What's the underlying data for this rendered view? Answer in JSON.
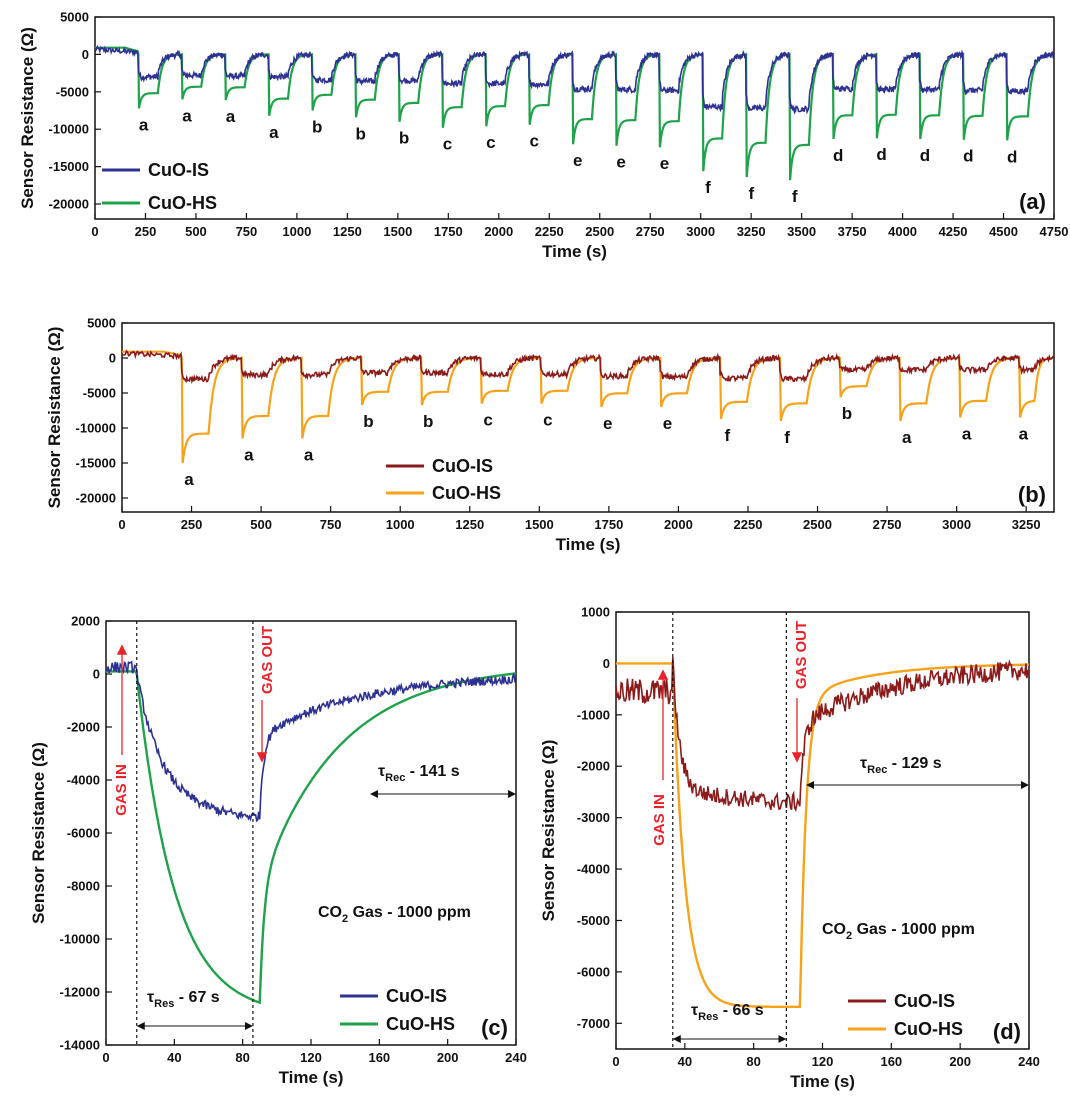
{
  "chart_data": [
    {
      "id": "a",
      "type": "line",
      "panel_label": "(a)",
      "xlabel": "Time (s)",
      "ylabel": "Sensor Resistance (Ω)",
      "xlim": [
        0,
        4750
      ],
      "ylim": [
        -22000,
        5000
      ],
      "xticks": [
        0,
        250,
        500,
        750,
        1000,
        1250,
        1500,
        1750,
        2000,
        2250,
        2500,
        2750,
        3000,
        3250,
        3500,
        3750,
        4000,
        4250,
        4500,
        4750
      ],
      "yticks": [
        5000,
        0,
        -5000,
        -10000,
        -15000,
        -20000
      ],
      "legend_position": "bottom-left",
      "series": [
        {
          "name": "CuO-IS",
          "color": "#2e3192"
        },
        {
          "name": "CuO-HS",
          "color": "#1fa34a"
        }
      ],
      "cycles": [
        {
          "start": 215,
          "end": 430,
          "label": "a",
          "is_min": -3000,
          "hs_min": -7200
        },
        {
          "start": 430,
          "end": 645,
          "label": "a",
          "is_min": -2800,
          "hs_min": -6000
        },
        {
          "start": 645,
          "end": 860,
          "label": "a",
          "is_min": -2900,
          "hs_min": -6100
        },
        {
          "start": 860,
          "end": 1075,
          "label": "a",
          "is_min": -3000,
          "hs_min": -8200
        },
        {
          "start": 1075,
          "end": 1290,
          "label": "b",
          "is_min": -3400,
          "hs_min": -7500
        },
        {
          "start": 1290,
          "end": 1505,
          "label": "b",
          "is_min": -3600,
          "hs_min": -8400
        },
        {
          "start": 1505,
          "end": 1720,
          "label": "b",
          "is_min": -3500,
          "hs_min": -9000
        },
        {
          "start": 1720,
          "end": 1935,
          "label": "c",
          "is_min": -3900,
          "hs_min": -9800
        },
        {
          "start": 1935,
          "end": 2150,
          "label": "c",
          "is_min": -3900,
          "hs_min": -9600
        },
        {
          "start": 2150,
          "end": 2365,
          "label": "c",
          "is_min": -4000,
          "hs_min": -9400
        },
        {
          "start": 2365,
          "end": 2580,
          "label": "e",
          "is_min": -4600,
          "hs_min": -12000
        },
        {
          "start": 2580,
          "end": 2795,
          "label": "e",
          "is_min": -4700,
          "hs_min": -12200
        },
        {
          "start": 2795,
          "end": 3010,
          "label": "e",
          "is_min": -4800,
          "hs_min": -12400
        },
        {
          "start": 3010,
          "end": 3225,
          "label": "f",
          "is_min": -7000,
          "hs_min": -15600
        },
        {
          "start": 3225,
          "end": 3440,
          "label": "f",
          "is_min": -7200,
          "hs_min": -16400
        },
        {
          "start": 3440,
          "end": 3655,
          "label": "f",
          "is_min": -7300,
          "hs_min": -16800
        },
        {
          "start": 3655,
          "end": 3870,
          "label": "d",
          "is_min": -4600,
          "hs_min": -11300
        },
        {
          "start": 3870,
          "end": 4085,
          "label": "d",
          "is_min": -4700,
          "hs_min": -11200
        },
        {
          "start": 4085,
          "end": 4300,
          "label": "d",
          "is_min": -4700,
          "hs_min": -11300
        },
        {
          "start": 4300,
          "end": 4515,
          "label": "d",
          "is_min": -4800,
          "hs_min": -11400
        },
        {
          "start": 4515,
          "end": 4750,
          "label": "d",
          "is_min": -4900,
          "hs_min": -11500
        }
      ]
    },
    {
      "id": "b",
      "type": "line",
      "panel_label": "(b)",
      "xlabel": "Time (s)",
      "ylabel": "Sensor Resistance (Ω)",
      "xlim": [
        0,
        3350
      ],
      "ylim": [
        -22000,
        5000
      ],
      "xticks": [
        0,
        250,
        500,
        750,
        1000,
        1250,
        1500,
        1750,
        2000,
        2250,
        2500,
        2750,
        3000,
        3250
      ],
      "yticks": [
        5000,
        0,
        -5000,
        -10000,
        -15000,
        -20000
      ],
      "legend_position": "bottom-center",
      "series": [
        {
          "name": "CuO-IS",
          "color": "#8b1a1a"
        },
        {
          "name": "CuO-HS",
          "color": "#f7a21b"
        }
      ],
      "cycles": [
        {
          "start": 215,
          "end": 430,
          "label": "a",
          "is_min": -3000,
          "hs_min": -15000
        },
        {
          "start": 430,
          "end": 645,
          "label": "a",
          "is_min": -2400,
          "hs_min": -11500
        },
        {
          "start": 645,
          "end": 860,
          "label": "a",
          "is_min": -2400,
          "hs_min": -11500
        },
        {
          "start": 860,
          "end": 1075,
          "label": "b",
          "is_min": -2100,
          "hs_min": -6700
        },
        {
          "start": 1075,
          "end": 1290,
          "label": "b",
          "is_min": -2100,
          "hs_min": -6700
        },
        {
          "start": 1290,
          "end": 1505,
          "label": "c",
          "is_min": -2300,
          "hs_min": -6500
        },
        {
          "start": 1505,
          "end": 1720,
          "label": "c",
          "is_min": -2300,
          "hs_min": -6500
        },
        {
          "start": 1720,
          "end": 1935,
          "label": "e",
          "is_min": -2600,
          "hs_min": -7000
        },
        {
          "start": 1935,
          "end": 2150,
          "label": "e",
          "is_min": -2700,
          "hs_min": -7000
        },
        {
          "start": 2150,
          "end": 2365,
          "label": "f",
          "is_min": -2900,
          "hs_min": -8700
        },
        {
          "start": 2365,
          "end": 2580,
          "label": "f",
          "is_min": -3000,
          "hs_min": -9000
        },
        {
          "start": 2580,
          "end": 2795,
          "label": "b",
          "is_min": -1700,
          "hs_min": -5600
        },
        {
          "start": 2795,
          "end": 3010,
          "label": "a",
          "is_min": -1700,
          "hs_min": -9000
        },
        {
          "start": 3010,
          "end": 3225,
          "label": "a",
          "is_min": -1700,
          "hs_min": -8500
        },
        {
          "start": 3225,
          "end": 3350,
          "label": "a",
          "is_min": -1700,
          "hs_min": -8500
        }
      ]
    },
    {
      "id": "c",
      "type": "line",
      "panel_label": "(c)",
      "xlabel": "Time (s)",
      "ylabel": "Sensor Resistance (Ω)",
      "xlim": [
        0,
        240
      ],
      "ylim": [
        -14000,
        2000
      ],
      "xticks": [
        0,
        40,
        80,
        120,
        160,
        200,
        240
      ],
      "yticks": [
        2000,
        0,
        -2000,
        -4000,
        -6000,
        -8000,
        -10000,
        -12000,
        -14000
      ],
      "legend_position": "bottom-right",
      "gas_in_time": 18,
      "gas_out_time": 86,
      "series": [
        {
          "name": "CuO-IS",
          "color": "#2e3192",
          "min": -5400
        },
        {
          "name": "CuO-HS",
          "color": "#1fa34a",
          "min": -12400
        }
      ],
      "annotations": {
        "gas_in": "GAS IN",
        "gas_out": "GAS OUT",
        "tau_res": "67 s",
        "tau_rec": "141 s",
        "gas_text": "Gas - 1000 ppm"
      }
    },
    {
      "id": "d",
      "type": "line",
      "panel_label": "(d)",
      "xlabel": "Time (s)",
      "ylabel": "Sensor Resistance (Ω)",
      "xlim": [
        0,
        240
      ],
      "ylim": [
        -7500,
        1000
      ],
      "xticks": [
        0,
        40,
        80,
        120,
        160,
        200,
        240
      ],
      "yticks": [
        1000,
        0,
        -1000,
        -2000,
        -3000,
        -4000,
        -5000,
        -6000,
        -7000
      ],
      "legend_position": "bottom-right",
      "gas_in_time": 33,
      "gas_out_time": 99,
      "series": [
        {
          "name": "CuO-IS",
          "color": "#8b1a1a",
          "min": -2700
        },
        {
          "name": "CuO-HS",
          "color": "#f7a21b",
          "min": -6680
        }
      ],
      "annotations": {
        "gas_in": "GAS IN",
        "gas_out": "GAS OUT",
        "tau_res": "66 s",
        "tau_rec": "129 s",
        "gas_text": "Gas - 1000 ppm"
      }
    }
  ]
}
